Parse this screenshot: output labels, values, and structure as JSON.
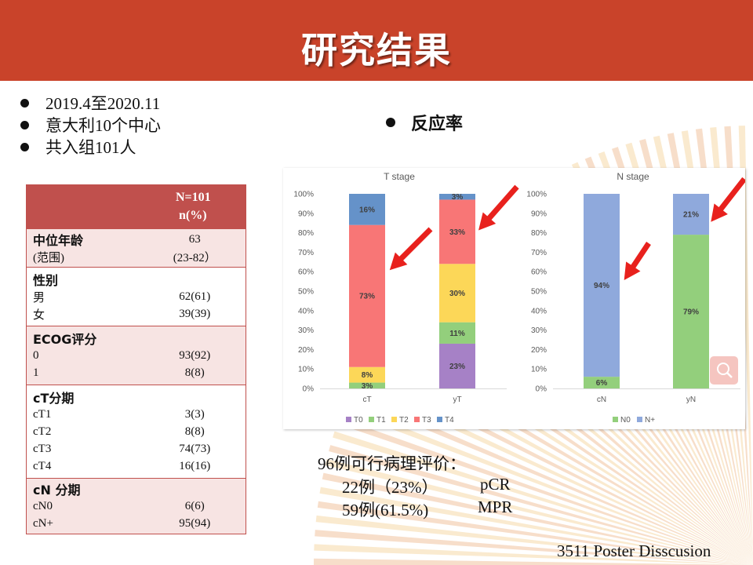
{
  "title": "研究结果",
  "bullets": [
    "2019.4至2020.11",
    "意大利10个中心",
    "共入组101人"
  ],
  "response_heading": "反应率",
  "table": {
    "header": [
      "N=101",
      "n(%)"
    ],
    "groups": [
      {
        "rows": [
          {
            "k": "中位年龄",
            "v": "63",
            "bold": true
          },
          {
            "k": " (范围)",
            "v": "(23-82）"
          }
        ]
      },
      {
        "rows": [
          {
            "k": "性别",
            "v": "",
            "bold": true
          },
          {
            "k": "男",
            "v": "62(61)"
          },
          {
            "k": "女",
            "v": "39(39)"
          }
        ]
      },
      {
        "rows": [
          {
            "k": "ECOG评分",
            "v": "",
            "bold": true
          },
          {
            "k": "0",
            "v": "93(92)"
          },
          {
            "k": "1",
            "v": "8(8)"
          }
        ]
      },
      {
        "rows": [
          {
            "k": "cT分期",
            "v": "",
            "bold": true
          },
          {
            "k": "cT1",
            "v": "3(3)"
          },
          {
            "k": "cT2",
            "v": "8(8)"
          },
          {
            "k": "cT3",
            "v": "74(73)"
          },
          {
            "k": "cT4",
            "v": "16(16)"
          }
        ]
      },
      {
        "rows": [
          {
            "k": "cN 分期",
            "v": "",
            "bold": true
          },
          {
            "k": "cN0",
            "v": "6(6)"
          },
          {
            "k": "cN+",
            "v": "95(94)"
          }
        ]
      }
    ]
  },
  "chart_data": [
    {
      "type": "bar",
      "stacked": true,
      "title": "T stage",
      "categories": [
        "cT",
        "yT"
      ],
      "ylim": [
        0,
        100
      ],
      "yticks": [
        "0%",
        "10%",
        "20%",
        "30%",
        "40%",
        "50%",
        "60%",
        "70%",
        "80%",
        "90%",
        "100%"
      ],
      "series": [
        {
          "name": "T0",
          "color": "#a681c6",
          "values": [
            0,
            23
          ],
          "labels": [
            "",
            "23%"
          ]
        },
        {
          "name": "T1",
          "color": "#93cf7c",
          "values": [
            3,
            11
          ],
          "labels": [
            "3%",
            "11%"
          ]
        },
        {
          "name": "T2",
          "color": "#fcd758",
          "values": [
            8,
            30
          ],
          "labels": [
            "8%",
            "30%"
          ]
        },
        {
          "name": "T3",
          "color": "#f87676",
          "values": [
            73,
            33
          ],
          "labels": [
            "73%",
            "33%"
          ]
        },
        {
          "name": "T4",
          "color": "#6592c9",
          "values": [
            16,
            3
          ],
          "labels": [
            "16%",
            "3%"
          ]
        }
      ],
      "legend": "bottom",
      "grid": false
    },
    {
      "type": "bar",
      "stacked": true,
      "title": "N stage",
      "categories": [
        "cN",
        "yN"
      ],
      "ylim": [
        0,
        100
      ],
      "yticks": [
        "0%",
        "10%",
        "20%",
        "30%",
        "40%",
        "50%",
        "60%",
        "70%",
        "80%",
        "90%",
        "100%"
      ],
      "series": [
        {
          "name": "N0",
          "color": "#93cf7c",
          "values": [
            6,
            79
          ],
          "labels": [
            "6%",
            "79%"
          ]
        },
        {
          "name": "N+",
          "color": "#8fa9dc",
          "values": [
            94,
            21
          ],
          "labels": [
            "94%",
            "21%"
          ]
        }
      ],
      "legend": "bottom",
      "grid": false
    }
  ],
  "notes": [
    "96例可行病理评价：",
    "22例（23%）",
    "pCR",
    "59例(61.5%)",
    "MPR"
  ],
  "footer": "3511 Poster Disscusion",
  "colors": {
    "header": "#c9432a",
    "table_header": "#c0504d",
    "arrow": "#e8211d"
  }
}
